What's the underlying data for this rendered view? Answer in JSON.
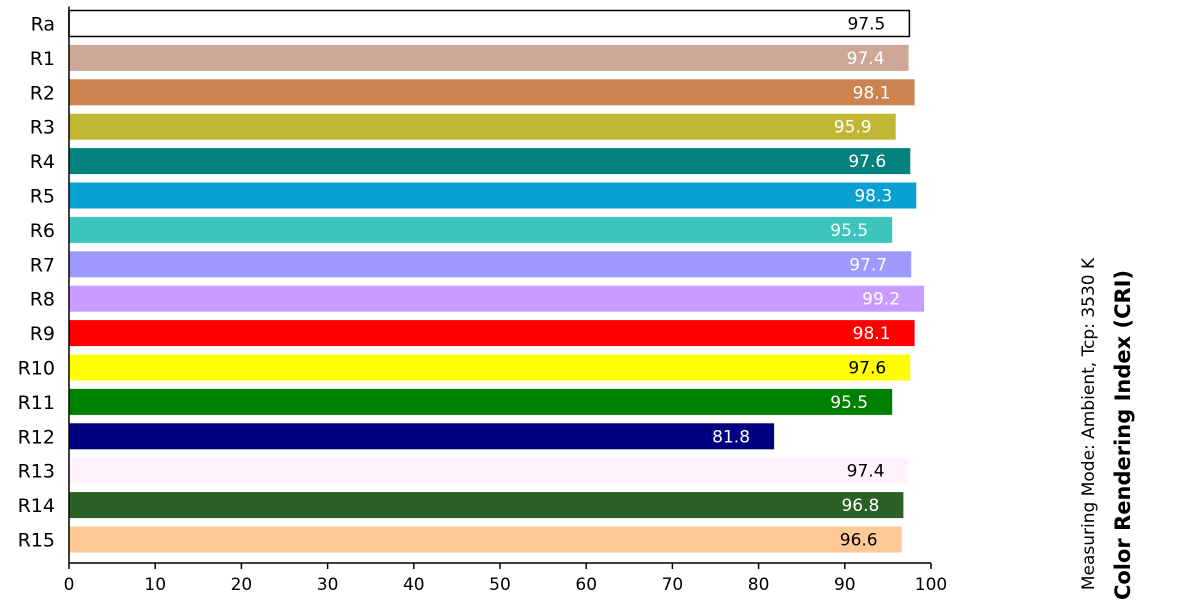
{
  "chart_data": {
    "type": "bar",
    "orientation": "horizontal",
    "title": "Color Rendering Index (CRI)",
    "subtitle": "Measuring Mode: Ambient, Tcp: 3530 K",
    "xlabel": "",
    "ylabel": "",
    "xlim": [
      0,
      100
    ],
    "x_ticks": [
      0,
      10,
      20,
      30,
      40,
      50,
      60,
      70,
      80,
      90,
      100
    ],
    "grid": false,
    "legend": "none",
    "bars": [
      {
        "label": "Ra",
        "value": 97.5,
        "color": "#ffffff",
        "text_color": "#000000",
        "outlined": true
      },
      {
        "label": "R1",
        "value": 97.4,
        "color": "#cea796",
        "text_color": "#ffffff"
      },
      {
        "label": "R2",
        "value": 98.1,
        "color": "#cd8350",
        "text_color": "#ffffff"
      },
      {
        "label": "R3",
        "value": 95.9,
        "color": "#c0b734",
        "text_color": "#ffffff"
      },
      {
        "label": "R4",
        "value": 97.6,
        "color": "#03827f",
        "text_color": "#ffffff"
      },
      {
        "label": "R5",
        "value": 98.3,
        "color": "#0ba0d2",
        "text_color": "#ffffff"
      },
      {
        "label": "R6",
        "value": 95.5,
        "color": "#3cc4bd",
        "text_color": "#ffffff"
      },
      {
        "label": "R7",
        "value": 97.7,
        "color": "#9d99ff",
        "text_color": "#ffffff"
      },
      {
        "label": "R8",
        "value": 99.2,
        "color": "#c99cff",
        "text_color": "#ffffff"
      },
      {
        "label": "R9",
        "value": 98.1,
        "color": "#ff0000",
        "text_color": "#ffffff"
      },
      {
        "label": "R10",
        "value": 97.6,
        "color": "#ffff00",
        "text_color": "#000000"
      },
      {
        "label": "R11",
        "value": 95.5,
        "color": "#008000",
        "text_color": "#ffffff"
      },
      {
        "label": "R12",
        "value": 81.8,
        "color": "#000080",
        "text_color": "#ffffff"
      },
      {
        "label": "R13",
        "value": 97.4,
        "color": "#fff2fd",
        "text_color": "#000000"
      },
      {
        "label": "R14",
        "value": 96.8,
        "color": "#2b6124",
        "text_color": "#ffffff"
      },
      {
        "label": "R15",
        "value": 96.6,
        "color": "#ffc997",
        "text_color": "#000000"
      }
    ]
  }
}
